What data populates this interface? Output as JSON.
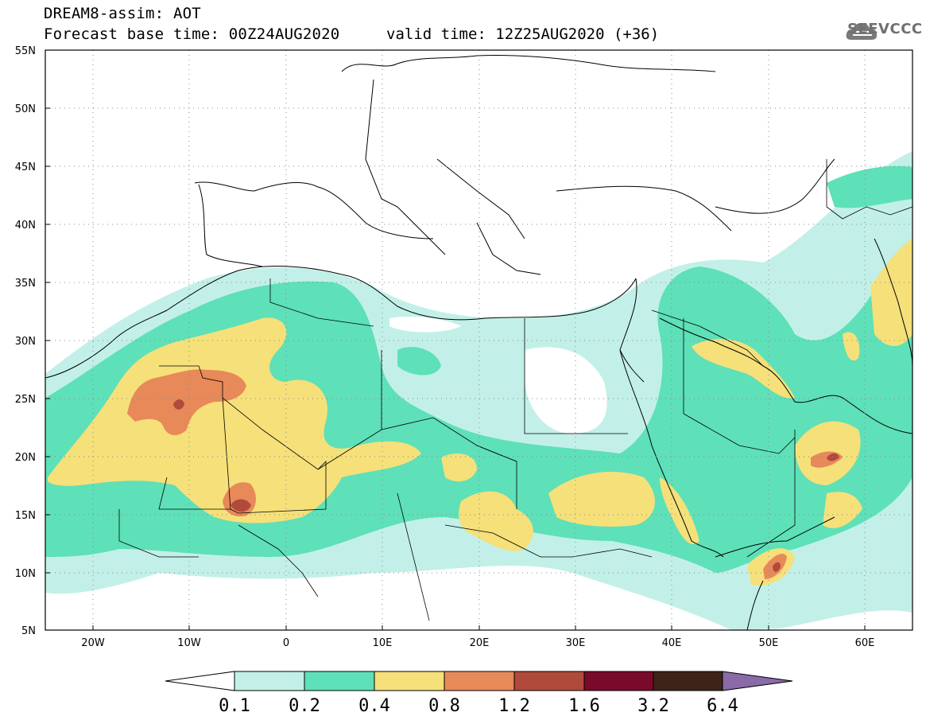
{
  "header": {
    "product": "DREAM8-assim: AOT",
    "base_time": "Forecast base time: 00Z24AUG2020",
    "valid_time": "valid time: 12Z25AUG2020 (+36)"
  },
  "logo": {
    "text": "SEEVCCC",
    "icon": "cloud-logo-icon"
  },
  "map": {
    "lat_labels": [
      "55N",
      "50N",
      "45N",
      "40N",
      "35N",
      "30N",
      "25N",
      "20N",
      "15N",
      "10N",
      "5N"
    ],
    "lon_labels": [
      "20W",
      "10W",
      "0",
      "10E",
      "20E",
      "30E",
      "40E",
      "50E",
      "60E"
    ],
    "lon_range": [
      -25,
      65
    ],
    "lat_range": [
      5,
      55
    ],
    "grid": "dotted"
  },
  "legend": {
    "labels": [
      "0.1",
      "0.2",
      "0.4",
      "0.8",
      "1.2",
      "1.6",
      "3.2",
      "6.4"
    ],
    "colors": [
      "#ffffff",
      "#c2f0e8",
      "#5ee0b8",
      "#f5e07a",
      "#e8895a",
      "#b04a3a",
      "#7a0a2a",
      "#3e2418",
      "#8a6aa8"
    ]
  }
}
